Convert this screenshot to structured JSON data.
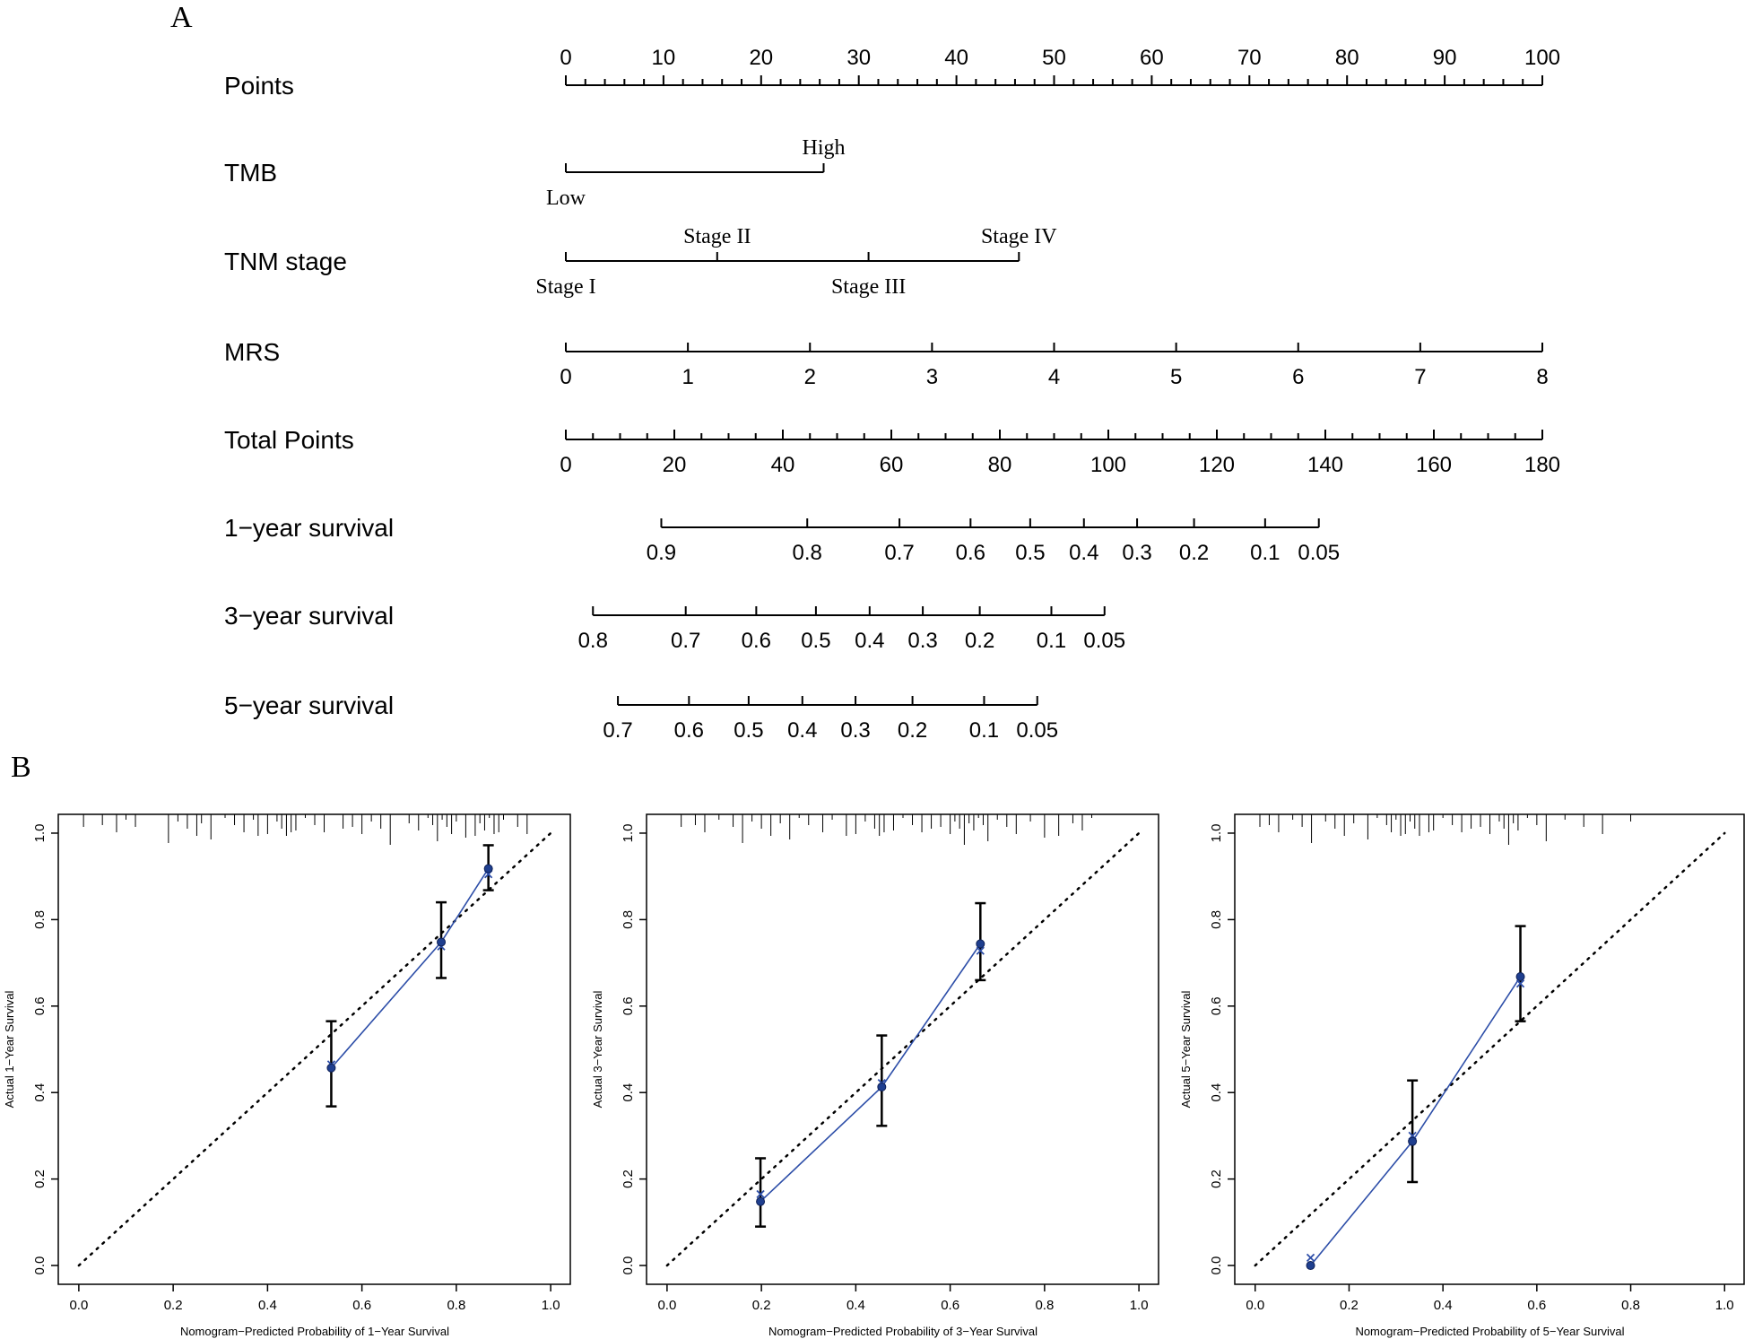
{
  "panel_labels": {
    "a": "A",
    "b": "B"
  },
  "chart_data": [
    {
      "type": "nomogram",
      "panel": "A",
      "rows": [
        {
          "name": "Points",
          "kind": "axis",
          "min": 0,
          "max": 100,
          "major_step": 10,
          "minor_step": 2,
          "ticks": [
            "0",
            "10",
            "20",
            "30",
            "40",
            "50",
            "60",
            "70",
            "80",
            "90",
            "100"
          ],
          "label_side": "top"
        },
        {
          "name": "TMB",
          "kind": "factor",
          "levels": [
            {
              "label": "Low",
              "points": 0,
              "side": "below"
            },
            {
              "label": "High",
              "points": 26.4,
              "side": "above"
            }
          ]
        },
        {
          "name": "TNM stage",
          "kind": "factor",
          "levels": [
            {
              "label": "Stage I",
              "points": 0,
              "side": "below"
            },
            {
              "label": "Stage II",
              "points": 15.5,
              "side": "above"
            },
            {
              "label": "Stage III",
              "points": 31.0,
              "side": "below"
            },
            {
              "label": "Stage IV",
              "points": 46.4,
              "side": "above"
            }
          ]
        },
        {
          "name": "MRS",
          "kind": "axis",
          "min": 0,
          "max": 8,
          "points_min": 0,
          "points_max": 100,
          "ticks": [
            "0",
            "1",
            "2",
            "3",
            "4",
            "5",
            "6",
            "7",
            "8"
          ],
          "label_side": "bottom"
        },
        {
          "name": "Total Points",
          "kind": "axis",
          "min": 0,
          "max": 180,
          "major_step": 20,
          "minor_step": 5,
          "ticks": [
            "0",
            "20",
            "40",
            "60",
            "80",
            "100",
            "120",
            "140",
            "160",
            "180"
          ],
          "label_side": "bottom"
        },
        {
          "name": "1−year survival",
          "kind": "prob",
          "ticks": [
            {
              "label": "0.9",
              "total": 17.6
            },
            {
              "label": "0.8",
              "total": 44.5
            },
            {
              "label": "0.7",
              "total": 61.5
            },
            {
              "label": "0.6",
              "total": 74.6
            },
            {
              "label": "0.5",
              "total": 85.6
            },
            {
              "label": "0.4",
              "total": 95.5
            },
            {
              "label": "0.3",
              "total": 105.3
            },
            {
              "label": "0.2",
              "total": 115.8
            },
            {
              "label": "0.1",
              "total": 128.9
            },
            {
              "label": "0.05",
              "total": 138.8
            }
          ]
        },
        {
          "name": "3−year survival",
          "kind": "prob",
          "ticks": [
            {
              "label": "0.8",
              "total": 5.0
            },
            {
              "label": "0.7",
              "total": 22.1
            },
            {
              "label": "0.6",
              "total": 35.1
            },
            {
              "label": "0.5",
              "total": 46.1
            },
            {
              "label": "0.4",
              "total": 56.0
            },
            {
              "label": "0.3",
              "total": 65.8
            },
            {
              "label": "0.2",
              "total": 76.3
            },
            {
              "label": "0.1",
              "total": 89.5
            },
            {
              "label": "0.05",
              "total": 99.3
            }
          ]
        },
        {
          "name": "5−year survival",
          "kind": "prob",
          "ticks": [
            {
              "label": "0.7",
              "total": 9.6
            },
            {
              "label": "0.6",
              "total": 22.7
            },
            {
              "label": "0.5",
              "total": 33.7
            },
            {
              "label": "0.4",
              "total": 43.6
            },
            {
              "label": "0.3",
              "total": 53.4
            },
            {
              "label": "0.2",
              "total": 63.9
            },
            {
              "label": "0.1",
              "total": 77.1
            },
            {
              "label": "0.05",
              "total": 86.9
            }
          ]
        }
      ]
    },
    {
      "type": "calibration",
      "panel": "B1",
      "xlabel": "Nomogram−Predicted Probability of 1−Year Survival",
      "ylabel": "Actual 1−Year Survival",
      "xlim": [
        0,
        1
      ],
      "ylim": [
        0,
        1
      ],
      "xticks": [
        "0.0",
        "0.2",
        "0.4",
        "0.6",
        "0.8",
        "1.0"
      ],
      "yticks": [
        "0.0",
        "0.2",
        "0.4",
        "0.6",
        "0.8",
        "1.0"
      ],
      "observed": [
        {
          "x": 0.535,
          "y": 0.457
        },
        {
          "x": 0.768,
          "y": 0.748
        },
        {
          "x": 0.868,
          "y": 0.918
        }
      ],
      "ci": [
        [
          0.368,
          0.565
        ],
        [
          0.665,
          0.84
        ],
        [
          0.868,
          0.972
        ]
      ],
      "corrected": [
        {
          "x": 0.535,
          "y": 0.465
        },
        {
          "x": 0.768,
          "y": 0.738
        },
        {
          "x": 0.868,
          "y": 0.905
        }
      ],
      "rug": [
        0.01,
        0.05,
        0.08,
        0.1,
        0.12,
        0.19,
        0.21,
        0.23,
        0.25,
        0.26,
        0.28,
        0.31,
        0.33,
        0.35,
        0.37,
        0.38,
        0.4,
        0.42,
        0.43,
        0.44,
        0.45,
        0.46,
        0.48,
        0.5,
        0.52,
        0.56,
        0.58,
        0.6,
        0.62,
        0.64,
        0.66,
        0.7,
        0.72,
        0.74,
        0.75,
        0.76,
        0.77,
        0.78,
        0.79,
        0.8,
        0.82,
        0.84,
        0.85,
        0.86,
        0.87,
        0.88,
        0.89,
        0.9,
        0.93,
        0.95
      ]
    },
    {
      "type": "calibration",
      "panel": "B2",
      "xlabel": "Nomogram−Predicted Probability of 3−Year Survival",
      "ylabel": "Actual 3−Year Survival",
      "xlim": [
        0,
        1
      ],
      "ylim": [
        0,
        1
      ],
      "xticks": [
        "0.0",
        "0.2",
        "0.4",
        "0.6",
        "0.8",
        "1.0"
      ],
      "yticks": [
        "0.0",
        "0.2",
        "0.4",
        "0.6",
        "0.8",
        "1.0"
      ],
      "observed": [
        {
          "x": 0.198,
          "y": 0.148
        },
        {
          "x": 0.455,
          "y": 0.413
        },
        {
          "x": 0.664,
          "y": 0.744
        }
      ],
      "ci": [
        [
          0.09,
          0.248
        ],
        [
          0.323,
          0.532
        ],
        [
          0.66,
          0.838
        ]
      ],
      "corrected": [
        {
          "x": 0.198,
          "y": 0.165
        },
        {
          "x": 0.455,
          "y": 0.422
        },
        {
          "x": 0.664,
          "y": 0.728
        }
      ],
      "rug": [
        0.03,
        0.06,
        0.08,
        0.11,
        0.14,
        0.16,
        0.18,
        0.2,
        0.22,
        0.24,
        0.26,
        0.28,
        0.3,
        0.33,
        0.35,
        0.38,
        0.4,
        0.42,
        0.44,
        0.45,
        0.46,
        0.48,
        0.5,
        0.52,
        0.54,
        0.56,
        0.58,
        0.6,
        0.61,
        0.62,
        0.63,
        0.64,
        0.65,
        0.66,
        0.67,
        0.68,
        0.7,
        0.72,
        0.74,
        0.77,
        0.8,
        0.83,
        0.86,
        0.88,
        0.9
      ]
    },
    {
      "type": "calibration",
      "panel": "B3",
      "xlabel": "Nomogram−Predicted Probability of 5−Year Survival",
      "ylabel": "Actual 5−Year Survival",
      "xlim": [
        0,
        1
      ],
      "ylim": [
        0,
        1
      ],
      "xticks": [
        "0.0",
        "0.2",
        "0.4",
        "0.6",
        "0.8",
        "1.0"
      ],
      "yticks": [
        "0.0",
        "0.2",
        "0.4",
        "0.6",
        "0.8",
        "1.0"
      ],
      "observed": [
        {
          "x": 0.118,
          "y": 0.0
        },
        {
          "x": 0.335,
          "y": 0.287
        },
        {
          "x": 0.565,
          "y": 0.668
        }
      ],
      "ci": [
        null,
        [
          0.193,
          0.428
        ],
        [
          0.565,
          0.785
        ]
      ],
      "corrected": [
        {
          "x": 0.118,
          "y": 0.018
        },
        {
          "x": 0.335,
          "y": 0.3
        },
        {
          "x": 0.565,
          "y": 0.652
        }
      ],
      "rug": [
        0.01,
        0.03,
        0.05,
        0.08,
        0.1,
        0.12,
        0.15,
        0.17,
        0.19,
        0.21,
        0.24,
        0.26,
        0.28,
        0.29,
        0.3,
        0.31,
        0.32,
        0.33,
        0.34,
        0.35,
        0.37,
        0.38,
        0.4,
        0.42,
        0.44,
        0.46,
        0.48,
        0.5,
        0.52,
        0.53,
        0.54,
        0.55,
        0.56,
        0.58,
        0.6,
        0.62,
        0.66,
        0.7,
        0.74,
        0.8
      ]
    }
  ]
}
